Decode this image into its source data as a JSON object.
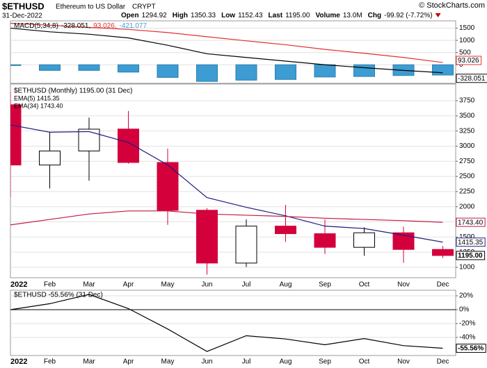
{
  "header": {
    "symbol": "$ETHUSD",
    "name": "Ethereum to US Dollar",
    "exchange": "CRYPT",
    "date": "31-Dec-2022",
    "copyright": "© StockCharts.com",
    "quote": [
      [
        "Open",
        "1294.92"
      ],
      [
        "High",
        "1350.33"
      ],
      [
        "Low",
        "1152.43"
      ],
      [
        "Last",
        "1195.00"
      ],
      [
        "Volume",
        "13.0M"
      ],
      [
        "Chg",
        "-99.92 (-7.72%)"
      ]
    ]
  },
  "chart_data": [
    {
      "type": "macd",
      "legend": [
        "MACD(5,34,8)",
        "-328.051,",
        "93.026,",
        "-421.077"
      ],
      "ylim": [
        -760,
        1800
      ],
      "yticks": [
        0,
        500,
        1000,
        1500
      ],
      "grid": true,
      "series": [
        {
          "name": "MACD",
          "color": "#000000",
          "values": [
            1500,
            1350,
            1250,
            1100,
            800,
            450,
            300,
            150,
            0,
            -120,
            -230,
            -328.051
          ]
        },
        {
          "name": "Signal",
          "color": "#e03030",
          "values": [
            1700,
            1620,
            1530,
            1450,
            1320,
            1150,
            980,
            820,
            630,
            470,
            300,
            93.026
          ]
        },
        {
          "name": "Histogram",
          "color": "#3d9cd2",
          "values": [
            -30,
            -230,
            -230,
            -300,
            -520,
            -680,
            -630,
            -600,
            -500,
            -480,
            -440,
            -421.077
          ]
        }
      ]
    },
    {
      "type": "candlestick",
      "legend": "$ETHUSD (Monthly) 1195.00 (31 Dec)",
      "categories": [
        "2022",
        "Feb",
        "Mar",
        "Apr",
        "May",
        "Jun",
        "Jul",
        "Aug",
        "Sep",
        "Oct",
        "Nov",
        "Dec"
      ],
      "open": [
        3683,
        2688,
        2920,
        3282,
        2730,
        1942,
        1070,
        1680,
        1555,
        1330,
        1570,
        1294.92
      ],
      "high": [
        3900,
        3230,
        3470,
        3580,
        2960,
        1975,
        1790,
        2030,
        1790,
        1660,
        1670,
        1350.33
      ],
      "low": [
        2159,
        2300,
        2430,
        2710,
        1700,
        880,
        1005,
        1420,
        1220,
        1190,
        1075,
        1152.43
      ],
      "close": [
        2688,
        2920,
        3280,
        2730,
        1940,
        1070,
        1680,
        1555,
        1330,
        1570,
        1295,
        1195
      ],
      "close_label": "1195.00",
      "up_color": "#ffffff",
      "down_color": "#d4003c",
      "ylim": [
        828,
        4025
      ],
      "yticks": [
        1000,
        1250,
        1500,
        1750,
        2000,
        2250,
        2500,
        2750,
        3000,
        3250,
        3500,
        3750
      ],
      "grid": true,
      "series": [
        {
          "name": "EMA(5) 1415.35",
          "color": "#1c1c80",
          "last_label": "1415.35",
          "values": [
            3350,
            3230,
            3240,
            3060,
            2690,
            2150,
            1990,
            1850,
            1680,
            1640,
            1530,
            1415.35
          ]
        },
        {
          "name": "EMA(34) 1743.40",
          "color": "#c4163e",
          "last_label": "1743.40",
          "values": [
            1700,
            1790,
            1880,
            1930,
            1930,
            1880,
            1860,
            1840,
            1810,
            1790,
            1770,
            1743.4
          ]
        }
      ]
    },
    {
      "type": "line",
      "legend": "$ETHUSD -55.56% (31 Dec)",
      "categories": [
        "2022",
        "Feb",
        "Mar",
        "Apr",
        "May",
        "Jun",
        "Jul",
        "Aug",
        "Sep",
        "Oct",
        "Nov",
        "Dec"
      ],
      "ylim": [
        -66,
        28
      ],
      "yticks": [
        {
          "value": -40,
          "label": "-40%"
        },
        {
          "value": -20,
          "label": "-20%"
        },
        {
          "value": 0,
          "label": "0%"
        },
        {
          "value": 20,
          "label": "20%"
        }
      ],
      "grid": true,
      "series": [
        {
          "name": "$ETHUSD",
          "color": "#000000",
          "values": [
            0,
            8.6,
            22,
            1.6,
            -27.8,
            -60.2,
            -37.5,
            -42.2,
            -50.5,
            -41.6,
            -51.8,
            -55.56
          ],
          "last_label": "-55.56%"
        }
      ]
    }
  ]
}
